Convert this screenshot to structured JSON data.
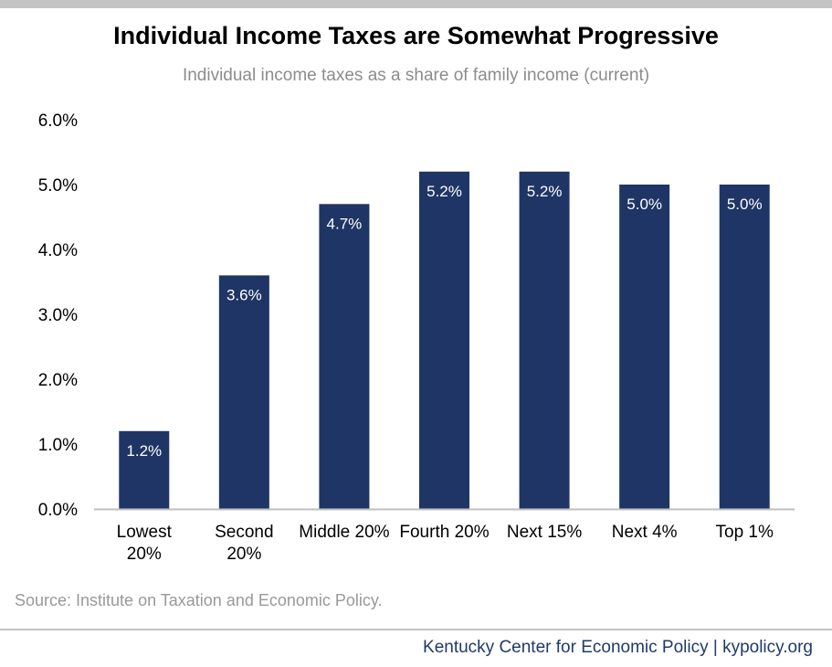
{
  "header": {
    "title": "Individual Income Taxes are Somewhat Progressive",
    "subtitle": "Individual income taxes as a share of family income (current)"
  },
  "footer": {
    "source": "Source: Institute on Taxation and Economic Policy.",
    "credit": "Kentucky Center for Economic Policy | kypolicy.org"
  },
  "colors": {
    "bar": "#1f3566",
    "bar_label": "#ffffff",
    "axis": "#bfbfbf",
    "text": "#000000",
    "subtitle": "#8c8c8c"
  },
  "chart_data": {
    "type": "bar",
    "title": "Individual Income Taxes are Somewhat Progressive",
    "subtitle": "Individual income taxes as a share of family income (current)",
    "categories": [
      "Lowest 20%",
      "Second 20%",
      "Middle 20%",
      "Fourth 20%",
      "Next 15%",
      "Next 4%",
      "Top 1%"
    ],
    "values": [
      1.2,
      3.6,
      4.7,
      5.2,
      5.2,
      5.0,
      5.0
    ],
    "value_labels": [
      "1.2%",
      "3.6%",
      "4.7%",
      "5.2%",
      "5.2%",
      "5.0%",
      "5.0%"
    ],
    "yticks": [
      0,
      1,
      2,
      3,
      4,
      5,
      6
    ],
    "ytick_labels": [
      "0.0%",
      "1.0%",
      "2.0%",
      "3.0%",
      "4.0%",
      "5.0%",
      "6.0%"
    ],
    "ylim": [
      0,
      6
    ],
    "xlabel": "",
    "ylabel": "",
    "grid": false,
    "legend": "none"
  }
}
